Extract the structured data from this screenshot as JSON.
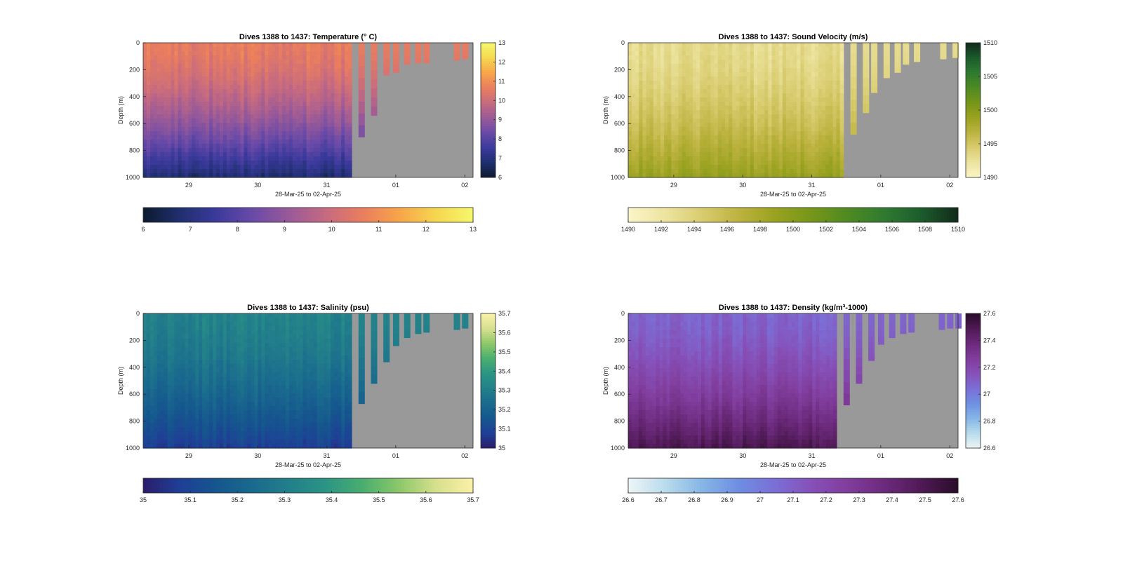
{
  "figure": {
    "colors": {
      "background": "#ffffff",
      "land_gray": "#999999",
      "axis": "#262626"
    }
  },
  "chart_data": [
    {
      "type": "heatmap",
      "id": "temperature",
      "title": "Dives 1388 to 1437: Temperature (° C)",
      "xlabel": "28-Mar-25 to 02-Apr-25",
      "ylabel": "Depth (m)",
      "xticks": [
        29,
        30,
        31,
        "01",
        "02"
      ],
      "xtick_days": [
        1,
        2,
        3,
        4,
        5
      ],
      "xlim_days": [
        0.34,
        5.12
      ],
      "yticks": [
        0,
        200,
        400,
        600,
        800,
        1000
      ],
      "ylim": [
        0,
        1000
      ],
      "colorbar_ticks": [
        6,
        7,
        8,
        9,
        10,
        11,
        12,
        13
      ],
      "clim": [
        6,
        13
      ],
      "colormap": [
        "#0d1a2e",
        "#1f2f6e",
        "#3b3a9c",
        "#6a4aa8",
        "#9a5a98",
        "#c66a80",
        "#ea7e5e",
        "#f8a54a",
        "#f5d750",
        "#f6f86c"
      ],
      "surface_value": 10.6,
      "deep_value": 6.8,
      "dense_end_day": 3.36,
      "columns": [
        [
          3.46,
          700
        ],
        [
          3.64,
          540
        ],
        [
          3.82,
          240
        ],
        [
          3.96,
          220
        ],
        [
          4.12,
          160
        ],
        [
          4.28,
          150
        ],
        [
          4.4,
          150
        ],
        [
          4.84,
          130
        ],
        [
          4.96,
          120
        ]
      ]
    },
    {
      "type": "heatmap",
      "id": "sound_velocity",
      "title": "Dives 1388 to 1437: Sound Velocity (m/s)",
      "xlabel": "28-Mar-25 to 02-Apr-25",
      "ylabel": "Depth (m)",
      "xticks": [
        29,
        30,
        31,
        "01",
        "02"
      ],
      "xtick_days": [
        1,
        2,
        3,
        4,
        5
      ],
      "xlim_days": [
        0.34,
        5.12
      ],
      "yticks": [
        0,
        200,
        400,
        600,
        800,
        1000
      ],
      "ylim": [
        0,
        1000
      ],
      "colorbar_ticks": [
        1490,
        1495,
        1500,
        1505,
        1510
      ],
      "colorbar_ticks_h": [
        1490,
        1492,
        1494,
        1496,
        1498,
        1500,
        1502,
        1504,
        1506,
        1508,
        1510
      ],
      "clim": [
        1490,
        1510
      ],
      "colormap": [
        "#fbf5c7",
        "#ede4a0",
        "#d9cc70",
        "#bdb340",
        "#9aa220",
        "#76961a",
        "#4f8a22",
        "#2f7a30",
        "#1c5c2c",
        "#122a1a"
      ],
      "surface_value": 1493,
      "deep_value": 1499,
      "dense_end_day": 3.46,
      "columns": [
        [
          3.56,
          680
        ],
        [
          3.74,
          520
        ],
        [
          3.86,
          370
        ],
        [
          4.04,
          260
        ],
        [
          4.2,
          220
        ],
        [
          4.32,
          160
        ],
        [
          4.48,
          140
        ],
        [
          4.86,
          120
        ],
        [
          5.04,
          110
        ]
      ]
    },
    {
      "type": "heatmap",
      "id": "salinity",
      "title": "Dives 1388 to 1437: Salinity (psu)",
      "xlabel": "28-Mar-25 to 02-Apr-25",
      "ylabel": "Depth (m)",
      "xticks": [
        29,
        30,
        31,
        "01",
        "02"
      ],
      "xtick_days": [
        1,
        2,
        3,
        4,
        5
      ],
      "xlim_days": [
        0.34,
        5.12
      ],
      "yticks": [
        0,
        200,
        400,
        600,
        800,
        1000
      ],
      "ylim": [
        0,
        1000
      ],
      "colorbar_ticks": [
        35,
        35.1,
        35.2,
        35.3,
        35.4,
        35.5,
        35.6,
        35.7
      ],
      "clim": [
        35,
        35.7
      ],
      "colormap": [
        "#2a1d6a",
        "#1f3f96",
        "#15568e",
        "#1a6a8e",
        "#22808a",
        "#2b9584",
        "#4aae6e",
        "#8ec86a",
        "#d6e08e",
        "#fbf1a8"
      ],
      "surface_value": 35.32,
      "deep_value": 35.08,
      "dense_end_day": 3.36,
      "columns": [
        [
          3.46,
          670
        ],
        [
          3.64,
          520
        ],
        [
          3.82,
          360
        ],
        [
          3.96,
          240
        ],
        [
          4.12,
          180
        ],
        [
          4.28,
          150
        ],
        [
          4.4,
          140
        ],
        [
          4.84,
          120
        ],
        [
          4.96,
          110
        ]
      ]
    },
    {
      "type": "heatmap",
      "id": "density",
      "title": "Dives 1388 to 1437: Density (kg/m³-1000)",
      "xlabel": "28-Mar-25 to 02-Apr-25",
      "ylabel": "Depth (m)",
      "xticks": [
        29,
        30,
        31,
        "01",
        "02"
      ],
      "xtick_days": [
        1,
        2,
        3,
        4,
        5
      ],
      "xlim_days": [
        0.34,
        5.12
      ],
      "yticks": [
        0,
        200,
        400,
        600,
        800,
        1000
      ],
      "ylim": [
        0,
        1000
      ],
      "colorbar_ticks": [
        26.6,
        26.8,
        27,
        27.2,
        27.4,
        27.6
      ],
      "colorbar_ticks_h": [
        26.6,
        26.7,
        26.8,
        26.9,
        27,
        27.1,
        27.2,
        27.3,
        27.4,
        27.5,
        27.6
      ],
      "colorbar_tick_labels": [
        "26.6",
        "26.8",
        "27",
        "27.2",
        "27.4",
        "27.6"
      ],
      "clim": [
        26.6,
        27.6
      ],
      "colormap": [
        "#eef6f6",
        "#b9dcec",
        "#86b6e6",
        "#6e8fe2",
        "#7b6fd6",
        "#8650b8",
        "#813d9c",
        "#6c2a7c",
        "#4f1a55",
        "#2a0c2a"
      ],
      "surface_value": 27.08,
      "deep_value": 27.5,
      "dense_end_day": 3.36,
      "columns": [
        [
          3.46,
          680
        ],
        [
          3.64,
          520
        ],
        [
          3.82,
          350
        ],
        [
          3.96,
          230
        ],
        [
          4.12,
          180
        ],
        [
          4.28,
          150
        ],
        [
          4.4,
          140
        ],
        [
          4.84,
          120
        ],
        [
          4.96,
          110
        ],
        [
          5.08,
          110
        ]
      ]
    }
  ]
}
